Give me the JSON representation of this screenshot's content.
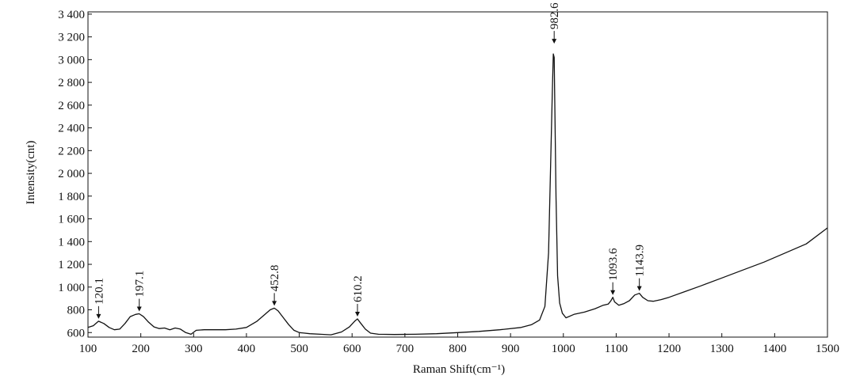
{
  "chart_data": {
    "type": "line",
    "xlabel": "Raman Shift(cm⁻¹)",
    "ylabel": "Intensity(cnt)",
    "xlim": [
      100,
      1500
    ],
    "ylim": [
      560,
      3420
    ],
    "x_ticks": [
      100,
      200,
      300,
      400,
      500,
      600,
      700,
      800,
      900,
      1000,
      1100,
      1200,
      1300,
      1400,
      1500
    ],
    "x_tick_labels": [
      "100",
      "200",
      "300",
      "400",
      "500",
      "600",
      "700",
      "800",
      "900",
      "1000",
      "1100",
      "1200",
      "1300",
      "1400",
      "1500"
    ],
    "y_ticks": [
      600,
      800,
      1000,
      1200,
      1400,
      1600,
      1800,
      2000,
      2200,
      2400,
      2600,
      2800,
      3000,
      3200,
      3400
    ],
    "y_tick_labels": [
      "600",
      "800",
      "1 000",
      "1 200",
      "1 400",
      "1 600",
      "1 800",
      "2 000",
      "2 200",
      "2 400",
      "2 600",
      "2 800",
      "3 000",
      "3 200",
      "3 400"
    ],
    "grid": false,
    "series": [
      {
        "x": [
          100,
          110,
          120,
          130,
          140,
          150,
          160,
          170,
          180,
          190,
          197,
          205,
          215,
          225,
          235,
          245,
          255,
          265,
          275,
          285,
          295,
          305,
          320,
          340,
          360,
          380,
          400,
          420,
          435,
          445,
          452.8,
          460,
          470,
          480,
          490,
          500,
          520,
          540,
          560,
          580,
          595,
          605,
          610.2,
          615,
          625,
          635,
          650,
          680,
          720,
          760,
          800,
          840,
          880,
          920,
          940,
          955,
          965,
          972,
          976,
          979,
          981,
          982.6,
          984,
          986,
          989,
          993,
          998,
          1005,
          1020,
          1040,
          1060,
          1075,
          1085,
          1090,
          1093.6,
          1097,
          1105,
          1115,
          1125,
          1135,
          1143.9,
          1150,
          1160,
          1170,
          1185,
          1200,
          1230,
          1260,
          1300,
          1340,
          1380,
          1420,
          1460,
          1500
        ],
        "y": [
          645,
          660,
          700,
          680,
          645,
          625,
          630,
          680,
          740,
          760,
          765,
          740,
          690,
          650,
          635,
          640,
          625,
          640,
          630,
          600,
          585,
          620,
          625,
          625,
          625,
          630,
          645,
          700,
          760,
          800,
          815,
          790,
          730,
          670,
          620,
          600,
          590,
          585,
          580,
          605,
          650,
          700,
          720,
          690,
          630,
          595,
          585,
          583,
          585,
          590,
          600,
          610,
          625,
          645,
          670,
          710,
          830,
          1300,
          2100,
          2700,
          3050,
          3020,
          2550,
          1800,
          1100,
          860,
          770,
          730,
          760,
          780,
          810,
          840,
          850,
          880,
          910,
          870,
          840,
          855,
          880,
          930,
          945,
          910,
          880,
          875,
          890,
          910,
          960,
          1010,
          1080,
          1150,
          1220,
          1300,
          1380,
          1520
        ]
      }
    ],
    "annotations": [
      {
        "x": 120.1,
        "y": 700,
        "label": "120.1"
      },
      {
        "x": 197.1,
        "y": 765,
        "label": "197.1"
      },
      {
        "x": 452.8,
        "y": 815,
        "label": "452.8"
      },
      {
        "x": 610.2,
        "y": 720,
        "label": "610.2"
      },
      {
        "x": 982.6,
        "y": 3120,
        "label": "982.6"
      },
      {
        "x": 1093.6,
        "y": 910,
        "label": "1093.6"
      },
      {
        "x": 1143.9,
        "y": 945,
        "label": "1143.9"
      }
    ]
  }
}
